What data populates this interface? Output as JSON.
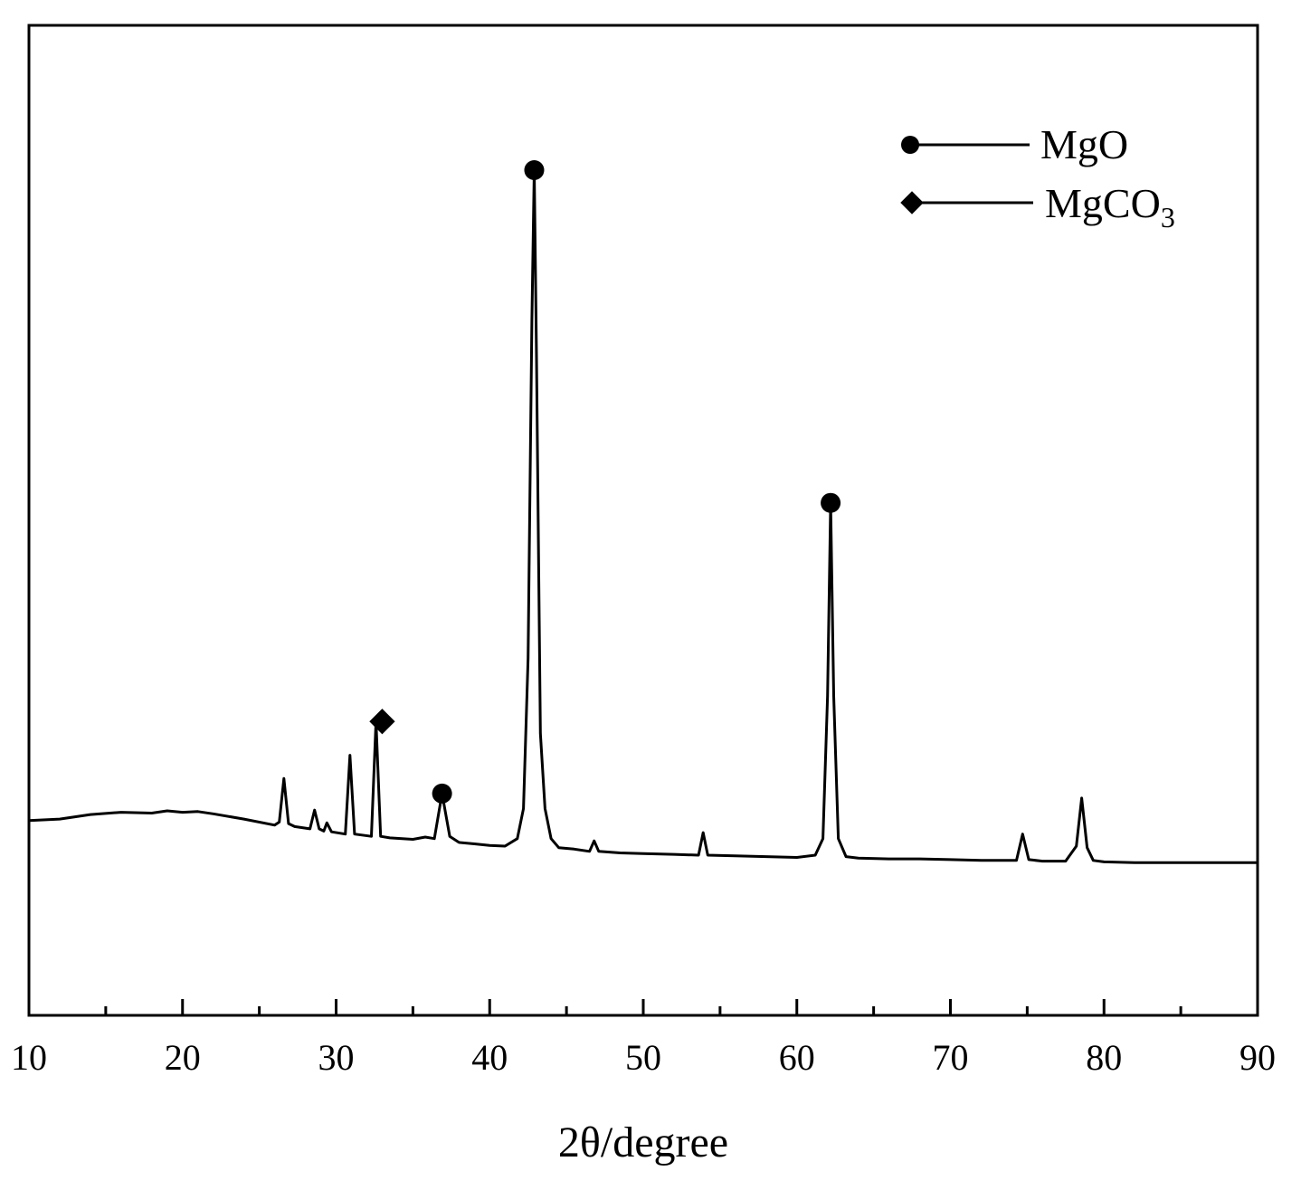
{
  "chart_data": {
    "type": "line",
    "title": "",
    "xlabel": "2θ/degree",
    "ylabel": "",
    "xlim": [
      10,
      90
    ],
    "ylim": [
      0,
      100
    ],
    "x_ticks": [
      10,
      20,
      30,
      40,
      50,
      60,
      70,
      80,
      90
    ],
    "x_minor_ticks": [
      15,
      25,
      35,
      45,
      55,
      65,
      75,
      85
    ],
    "y_ticks_visible": false,
    "grid": false,
    "legend_position": "top-right",
    "line_color": "#000000",
    "legend": [
      {
        "marker": "circle",
        "text": "MgO",
        "subscript": ""
      },
      {
        "marker": "diamond",
        "text": "MgCO",
        "subscript": "3"
      }
    ],
    "series": [
      {
        "x": [
          10,
          12,
          14,
          16,
          18,
          19,
          20,
          21,
          22,
          24,
          26,
          26.3,
          26.6,
          26.9,
          27.3,
          28.3,
          28.6,
          28.9,
          29.2,
          29.4,
          29.7,
          30.6,
          30.9,
          31.2,
          32.3,
          32.6,
          32.9,
          33.5,
          35,
          35.8,
          36.4,
          36.9,
          37.4,
          38,
          39,
          40,
          41,
          41.8,
          42.2,
          42.5,
          42.75,
          42.9,
          43.05,
          43.3,
          43.6,
          44,
          44.5,
          45.5,
          46.5,
          46.8,
          47.1,
          48.5,
          50,
          52,
          53.6,
          53.9,
          54.2,
          56,
          58,
          60,
          61.2,
          61.7,
          62.0,
          62.2,
          62.4,
          62.7,
          63.2,
          64,
          66,
          68,
          70,
          72,
          74.3,
          74.7,
          75.1,
          76,
          77.5,
          78.2,
          78.55,
          78.9,
          79.3,
          80,
          82,
          84,
          86,
          88,
          90
        ],
        "y": [
          13.4,
          13.6,
          14.2,
          14.5,
          14.4,
          14.7,
          14.5,
          14.6,
          14.3,
          13.6,
          12.8,
          13.2,
          19.0,
          13.0,
          12.6,
          12.3,
          14.8,
          12.3,
          12.0,
          13.1,
          11.9,
          11.6,
          22.1,
          11.6,
          11.3,
          26.6,
          11.3,
          11.1,
          10.9,
          11.2,
          11.0,
          17.0,
          11.3,
          10.5,
          10.3,
          10.1,
          10.0,
          11.0,
          15.0,
          35.0,
          80.0,
          100.0,
          75.0,
          25.0,
          15.0,
          11.0,
          9.8,
          9.6,
          9.3,
          10.7,
          9.3,
          9.1,
          9.0,
          8.9,
          8.8,
          11.8,
          8.8,
          8.7,
          8.6,
          8.5,
          8.8,
          11.0,
          30.0,
          55.7,
          30.0,
          11.0,
          8.6,
          8.4,
          8.3,
          8.3,
          8.2,
          8.1,
          8.1,
          11.6,
          8.2,
          8.0,
          8.0,
          10.0,
          16.4,
          9.8,
          8.1,
          7.9,
          7.8,
          7.8,
          7.8,
          7.8,
          7.8
        ]
      }
    ],
    "markers": [
      {
        "type": "circle",
        "x": 42.9,
        "y": 100.0
      },
      {
        "type": "circle",
        "x": 62.2,
        "y": 55.7
      },
      {
        "type": "circle",
        "x": 36.9,
        "y": 17.0
      },
      {
        "type": "diamond",
        "x": 33.0,
        "y": 26.6
      }
    ]
  }
}
